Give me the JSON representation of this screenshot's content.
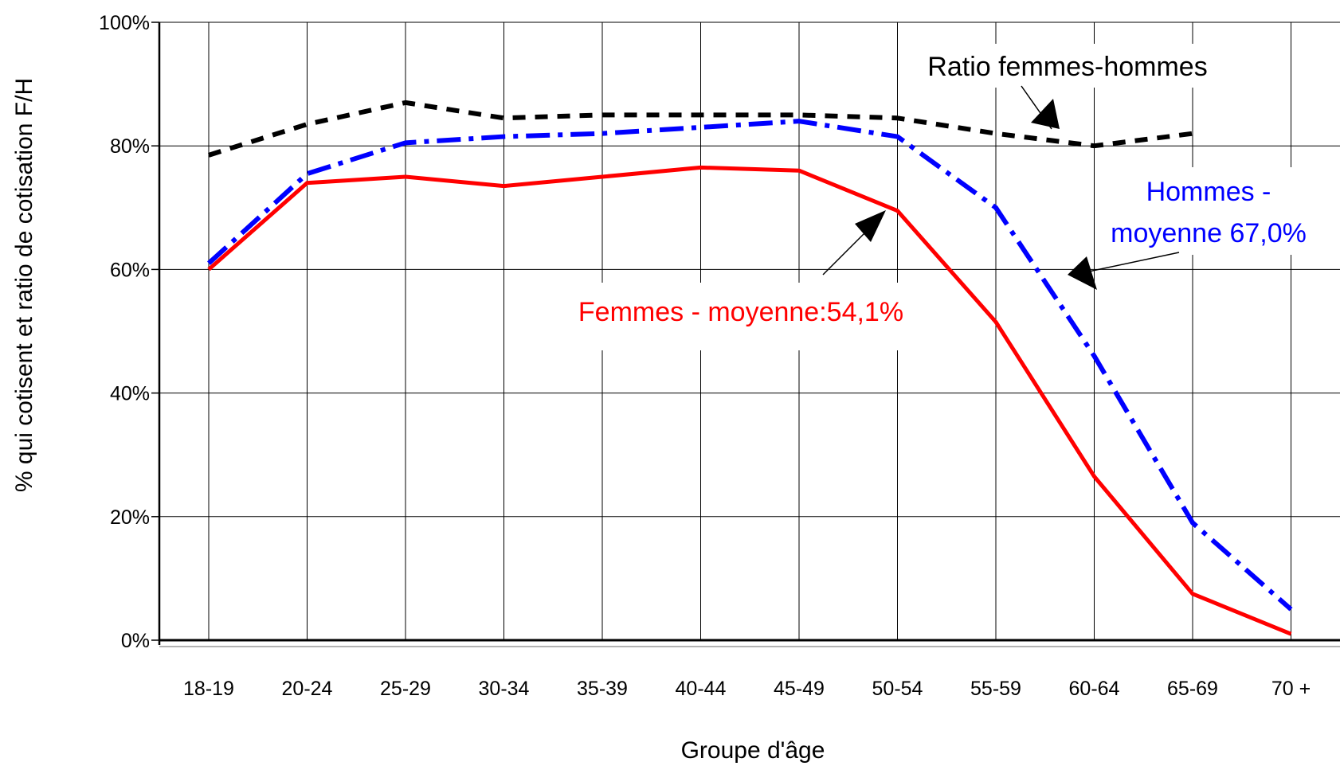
{
  "chart_data": {
    "type": "line",
    "categories": [
      "18-19",
      "20-24",
      "25-29",
      "30-34",
      "35-39",
      "40-44",
      "45-49",
      "50-54",
      "55-59",
      "60-64",
      "65-69",
      "70 +"
    ],
    "xlabel": "Groupe d'âge",
    "ylabel": "% qui cotisent et ratio de cotisation F/H",
    "ylim": [
      0,
      100
    ],
    "yticks": [
      "0%",
      "20%",
      "40%",
      "60%",
      "80%",
      "100%"
    ],
    "grid": true,
    "series": [
      {
        "key": "ratio",
        "color": "#000000",
        "style": "dashed",
        "values": [
          78.5,
          83.5,
          87,
          84.5,
          85,
          85,
          85,
          84.5,
          82,
          80,
          82,
          null
        ]
      },
      {
        "key": "hommes",
        "color": "#0000ff",
        "style": "dash-dot",
        "values": [
          61,
          75.5,
          80.5,
          81.5,
          82,
          83,
          84,
          81.5,
          70,
          46,
          19,
          5
        ]
      },
      {
        "key": "femmes",
        "color": "#ff0000",
        "style": "solid",
        "values": [
          60,
          74,
          75,
          73.5,
          75,
          76.5,
          76,
          69.5,
          51.5,
          26.5,
          7.5,
          1
        ]
      }
    ],
    "annotations": [
      {
        "key": "ratio",
        "text": "Ratio femmes-hommes",
        "color": "#000000"
      },
      {
        "key": "hommes",
        "lines": [
          "Hommes -",
          "moyenne 67,0%"
        ],
        "color": "#0000ff"
      },
      {
        "key": "femmes",
        "text": "Femmes - moyenne:54,1%",
        "color": "#ff0000"
      }
    ]
  }
}
